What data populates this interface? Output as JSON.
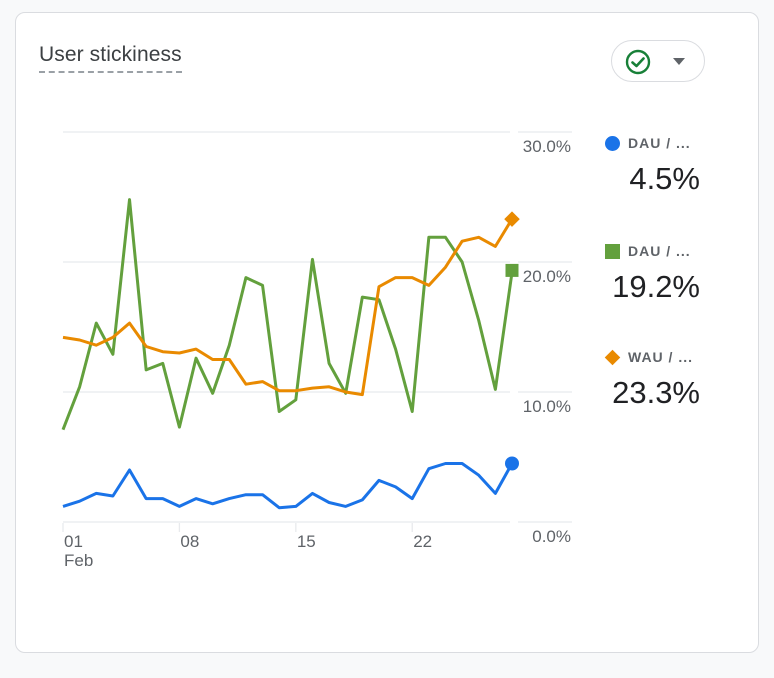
{
  "card": {
    "title": "User stickiness",
    "status_button": {
      "icon": "check-circle-icon",
      "dropdown_icon": "caret-down-icon",
      "status_color": "#188038"
    }
  },
  "legend": [
    {
      "label": "DAU / ...",
      "value": "4.5%",
      "marker": "circle",
      "color": "#1a73e8"
    },
    {
      "label": "DAU / ...",
      "value": "19.2%",
      "marker": "square",
      "color": "#63a03d"
    },
    {
      "label": "WAU / ...",
      "value": "23.3%",
      "marker": "diamond",
      "color": "#e98a00"
    }
  ],
  "chart_data": {
    "type": "line",
    "title": "User stickiness",
    "xlabel": "",
    "ylabel": "",
    "x": [
      1,
      2,
      3,
      4,
      5,
      6,
      7,
      8,
      9,
      10,
      11,
      12,
      13,
      14,
      15,
      16,
      17,
      18,
      19,
      20,
      21,
      22,
      23,
      24,
      25,
      26,
      27,
      28
    ],
    "x_ticks": [
      {
        "x": 1,
        "label": "01",
        "sublabel": "Feb"
      },
      {
        "x": 8,
        "label": "08",
        "sublabel": ""
      },
      {
        "x": 15,
        "label": "15",
        "sublabel": ""
      },
      {
        "x": 22,
        "label": "22",
        "sublabel": ""
      }
    ],
    "y_ticks": [
      {
        "value": 0,
        "label": "0.0%"
      },
      {
        "value": 10,
        "label": "10.0%"
      },
      {
        "value": 20,
        "label": "20.0%"
      },
      {
        "value": 30,
        "label": "30.0%"
      }
    ],
    "ylim": [
      0,
      30
    ],
    "grid": true,
    "y_axis_position": "right",
    "legend_position": "right",
    "series": [
      {
        "name": "DAU / MAU",
        "color": "#63a03d",
        "marker": "square",
        "values": [
          7.1,
          10.4,
          15.3,
          12.9,
          24.8,
          11.7,
          12.2,
          7.3,
          12.6,
          9.9,
          13.6,
          18.8,
          18.2,
          8.5,
          9.4,
          20.2,
          12.2,
          9.9,
          17.3,
          17.1,
          13.3,
          8.5,
          21.9,
          21.9,
          20.0,
          15.5,
          10.2,
          19.2
        ]
      },
      {
        "name": "WAU / MAU",
        "color": "#e98a00",
        "marker": "diamond",
        "values": [
          14.2,
          14.0,
          13.6,
          14.2,
          15.3,
          13.5,
          13.1,
          13.0,
          13.3,
          12.5,
          12.5,
          10.6,
          10.8,
          10.1,
          10.1,
          10.3,
          10.4,
          10.0,
          9.8,
          18.1,
          18.8,
          18.8,
          18.2,
          19.6,
          21.6,
          21.9,
          21.2,
          23.3
        ]
      },
      {
        "name": "DAU / WAU",
        "color": "#1a73e8",
        "marker": "circle",
        "values": [
          1.2,
          1.6,
          2.2,
          2.0,
          4.0,
          1.8,
          1.8,
          1.2,
          1.8,
          1.4,
          1.8,
          2.1,
          2.1,
          1.1,
          1.2,
          2.2,
          1.5,
          1.2,
          1.7,
          3.2,
          2.7,
          1.8,
          4.1,
          4.5,
          4.5,
          3.6,
          2.2,
          4.5
        ]
      }
    ]
  }
}
